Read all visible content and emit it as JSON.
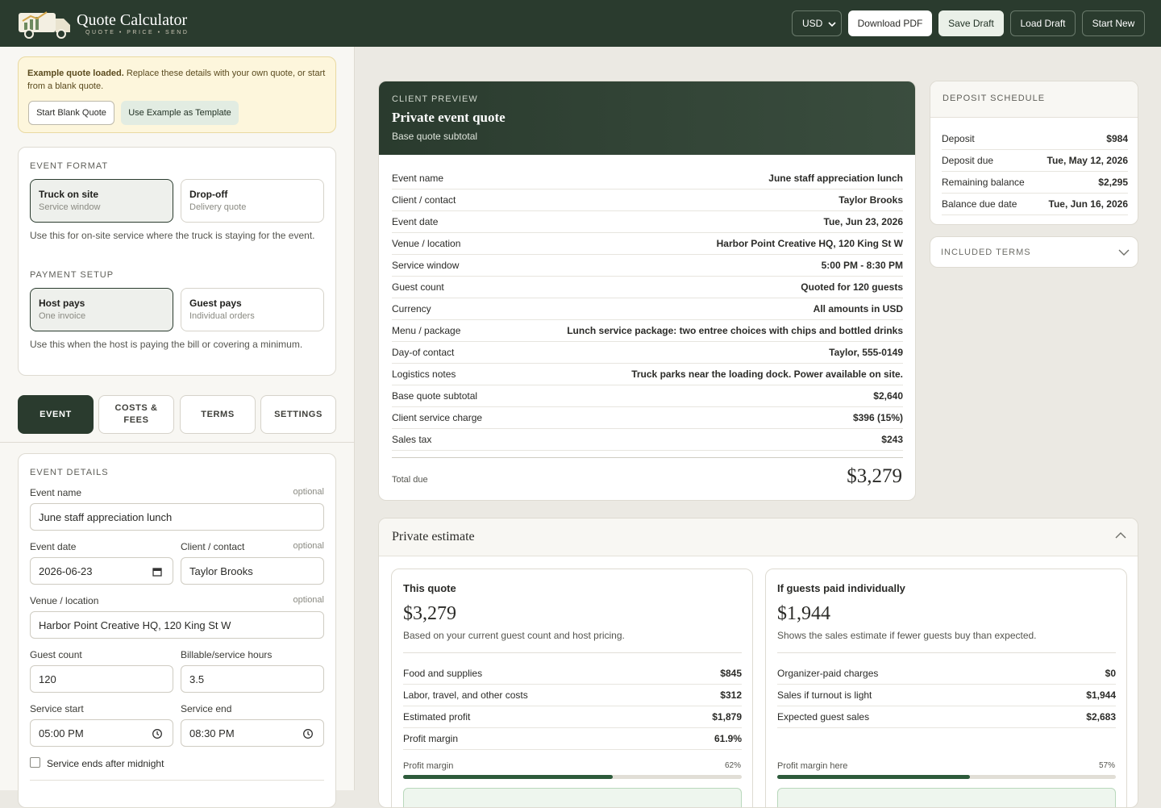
{
  "header": {
    "title": "Quote Calculator",
    "tagline": "QUOTE • PRICE • SEND",
    "currency": "USD",
    "buttons": [
      "Download PDF",
      "Save Draft",
      "Load Draft",
      "Start New"
    ]
  },
  "notice": {
    "lead": "Example quote loaded.",
    "text": "Replace these details with your own quote, or start from a blank quote.",
    "buttons": [
      "Start Blank Quote",
      "Use Example as Template"
    ]
  },
  "event_format": {
    "label": "EVENT FORMAT",
    "options": [
      {
        "title": "Truck on site",
        "subtitle": "Service window"
      },
      {
        "title": "Drop-off",
        "subtitle": "Delivery quote"
      }
    ],
    "help": "Use this for on-site service where the truck is staying for the event."
  },
  "payment_setup": {
    "label": "PAYMENT SETUP",
    "options": [
      {
        "title": "Host pays",
        "subtitle": "One invoice"
      },
      {
        "title": "Guest pays",
        "subtitle": "Individual orders"
      }
    ],
    "help": "Use this when the host is paying the bill or covering a minimum."
  },
  "tabs": [
    "EVENT",
    "COSTS & FEES",
    "TERMS",
    "SETTINGS"
  ],
  "event_details": {
    "label": "EVENT DETAILS",
    "fields": [
      {
        "label": "Event name",
        "optional": "optional",
        "value": "June staff appreciation lunch"
      },
      {
        "label": "Event date",
        "value": "2026-06-23"
      },
      {
        "label": "Client / contact",
        "optional": "optional",
        "value": "Taylor Brooks"
      },
      {
        "label": "Venue / location",
        "optional": "optional",
        "value": "Harbor Point Creative HQ, 120 King St W"
      },
      {
        "label": "Guest count",
        "value": "120"
      },
      {
        "label": "Billable/service hours",
        "value": "3.5"
      },
      {
        "label": "Service start",
        "value": "05:00 PM"
      },
      {
        "label": "Service end",
        "value": "08:30 PM"
      }
    ],
    "checkbox": "Service ends after midnight"
  },
  "preview": {
    "eyebrow": "CLIENT PREVIEW",
    "title": "Private event quote",
    "subtitle": "Base quote subtotal",
    "rows": [
      [
        "Event name",
        "June staff appreciation lunch"
      ],
      [
        "Client / contact",
        "Taylor Brooks"
      ],
      [
        "Event date",
        "Tue, Jun 23, 2026"
      ],
      [
        "Venue / location",
        "Harbor Point Creative HQ, 120 King St W"
      ],
      [
        "Service window",
        "5:00 PM - 8:30 PM"
      ],
      [
        "Guest count",
        "Quoted for 120 guests"
      ],
      [
        "Currency",
        "All amounts in USD"
      ],
      [
        "Menu / package",
        "Lunch service package: two entree choices with chips and bottled drinks"
      ],
      [
        "Day-of contact",
        "Taylor, 555-0149"
      ],
      [
        "Logistics notes",
        "Truck parks near the loading dock. Power available on site."
      ],
      [
        "Base quote subtotal",
        "$2,640"
      ],
      [
        "Client service charge",
        "$396 (15%)"
      ],
      [
        "Sales tax",
        "$243"
      ]
    ],
    "total_label": "Total due",
    "total": "$3,279"
  },
  "deposit": {
    "title": "DEPOSIT SCHEDULE",
    "rows": [
      [
        "Deposit",
        "$984"
      ],
      [
        "Deposit due",
        "Tue, May 12, 2026"
      ],
      [
        "Remaining balance",
        "$2,295"
      ],
      [
        "Balance due date",
        "Tue, Jun 16, 2026"
      ]
    ]
  },
  "terms": {
    "title": "INCLUDED TERMS"
  },
  "estimate": {
    "title": "Private estimate",
    "cards": [
      {
        "title": "This quote",
        "amount": "$3,279",
        "note": "Based on your current guest count and host pricing.",
        "rows": [
          [
            "Food and supplies",
            "$845"
          ],
          [
            "Labor, travel, and other costs",
            "$312"
          ],
          [
            "Estimated profit",
            "$1,879"
          ],
          [
            "Profit margin",
            "61.9%"
          ]
        ],
        "bar_label": "Profit margin",
        "bar": {
          "value": 62,
          "label": "62%"
        }
      },
      {
        "title": "If guests paid individually",
        "amount": "$1,944",
        "note": "Shows the sales estimate if fewer guests buy than expected.",
        "rows": [
          [
            "Organizer-paid charges",
            "$0"
          ],
          [
            "Sales if turnout is light",
            "$1,944"
          ],
          [
            "Expected guest sales",
            "$2,683"
          ]
        ],
        "bar_label": "Profit margin here",
        "bar": {
          "value": 57,
          "label": "57%"
        }
      }
    ]
  }
}
